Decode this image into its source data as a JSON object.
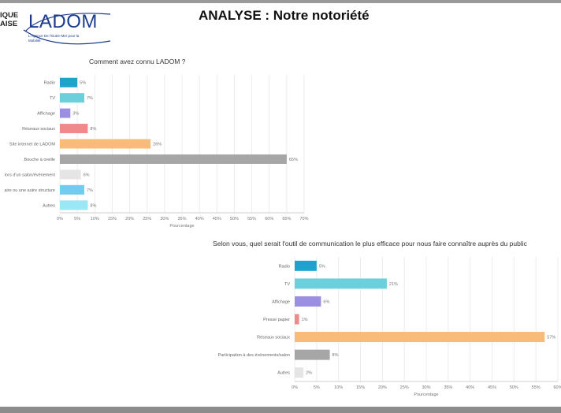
{
  "page": {
    "title": "ANALYSE : Notre notoriété",
    "corner_text_line1": "IQUE",
    "corner_text_line2": "AISE",
    "logo_main": "LADOM",
    "logo_sub": "L'Agence De l'Outre-Mer pour la Mobilité"
  },
  "colors": {
    "Radio": "#1fa2cc",
    "TV": "#6ccfdc",
    "Affichage": "#9a8fe0",
    "Rouge": "#f08a8a",
    "Orange": "#f9bc78",
    "Gris": "#a6a6a6",
    "GrisClair": "#e5e5e5",
    "Bleu": "#6fcdf0",
    "Autres": "#9ae7f5",
    "frame": "#9a9a9a"
  },
  "chart_data": [
    {
      "type": "bar",
      "orientation": "horizontal",
      "title": "Comment avez connu LADOM ?",
      "xlabel": "Pourcentage",
      "ylabel": "",
      "categories": [
        "Radio",
        "TV",
        "Affichage",
        "Réseaux sociaux",
        "Site internet de LADOM",
        "Bouche à oreille",
        "Lors d'un salon/événement",
        "Via une autre structure",
        "Autres"
      ],
      "tick_labels_visible": [
        "Radio",
        "TV",
        "Affichage",
        "Réseaux sociaux",
        "Site internet de LADOM",
        "Bouche à oreille",
        "lors d'un salon/événement",
        "aire ou une autre structure",
        "Autres"
      ],
      "values": [
        5,
        7,
        3,
        8,
        26,
        65,
        6,
        7,
        8
      ],
      "value_labels": [
        "5%",
        "7%",
        "3%",
        "8%",
        "26%",
        "65%",
        "6%",
        "7%",
        "8%"
      ],
      "bar_colors": [
        "#1fa2cc",
        "#6ccfdc",
        "#9a8fe0",
        "#f08a8a",
        "#f9bc78",
        "#a6a6a6",
        "#e5e5e5",
        "#6fcdf0",
        "#9ae7f5"
      ],
      "xlim": [
        0,
        70
      ],
      "xticks": [
        "0%",
        "5%",
        "10%",
        "15%",
        "20%",
        "25%",
        "30%",
        "35%",
        "40%",
        "45%",
        "50%",
        "55%",
        "60%",
        "65%",
        "70%"
      ],
      "grid": true,
      "legend": "none"
    },
    {
      "type": "bar",
      "orientation": "horizontal",
      "title": "Selon vous, quel serait l'outil de communication le plus efficace pour nous faire connaître auprès du public",
      "xlabel": "Pourcentage",
      "ylabel": "",
      "categories": [
        "Radio",
        "TV",
        "Affichage",
        "Presse papier",
        "Réseaux sociaux",
        "Participation à des événements/salon",
        "Autres"
      ],
      "values": [
        5,
        21,
        6,
        1,
        57,
        8,
        2
      ],
      "value_labels": [
        "5%",
        "21%",
        "6%",
        "1%",
        "57%",
        "8%",
        "2%"
      ],
      "bar_colors": [
        "#1fa2cc",
        "#6ccfdc",
        "#9a8fe0",
        "#f08a8a",
        "#f9bc78",
        "#a6a6a6",
        "#e5e5e5"
      ],
      "xlim": [
        0,
        60
      ],
      "xticks": [
        "0%",
        "5%",
        "10%",
        "15%",
        "20%",
        "25%",
        "30%",
        "35%",
        "40%",
        "45%",
        "50%",
        "55%",
        "60%"
      ],
      "grid": true,
      "legend": "none"
    }
  ]
}
